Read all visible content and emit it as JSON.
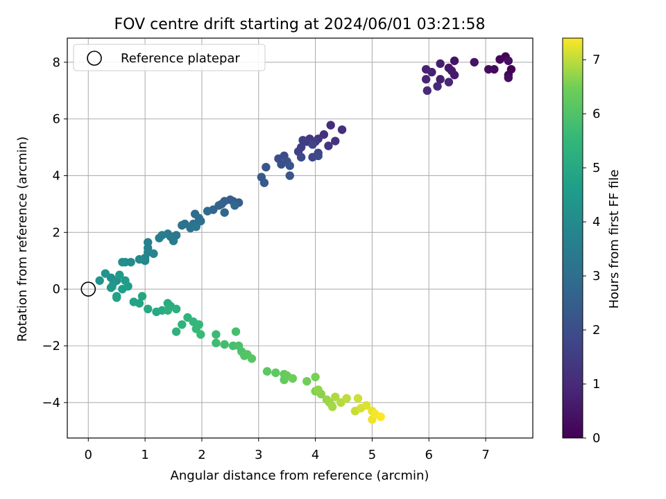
{
  "chart_data": {
    "type": "scatter",
    "title": "FOV centre drift starting at 2024/06/01 03:21:58",
    "xlabel": "Angular distance from reference (arcmin)",
    "ylabel": "Rotation from reference (arcmin)",
    "xlim": [
      -0.37,
      7.83
    ],
    "ylim": [
      -5.25,
      8.85
    ],
    "xticks": [
      0,
      1,
      2,
      3,
      4,
      5,
      6,
      7
    ],
    "yticks": [
      -4,
      -2,
      0,
      2,
      4,
      6,
      8
    ],
    "grid": true,
    "legend": {
      "placement": "top-left",
      "entries": [
        "Reference platepar"
      ]
    },
    "reference_point": {
      "x": 0,
      "y": 0
    },
    "colorbar": {
      "label": "Hours from first FF file",
      "colormap": "viridis",
      "range": [
        0,
        7.4
      ],
      "ticks": [
        0,
        1,
        2,
        3,
        4,
        5,
        6,
        7
      ]
    },
    "series": [
      {
        "points": [
          [
            7.45,
            7.75
          ],
          [
            7.4,
            7.55
          ],
          [
            7.35,
            8.2
          ],
          [
            7.25,
            8.1
          ],
          [
            7.15,
            7.75
          ],
          [
            7.05,
            7.75
          ],
          [
            7.4,
            7.45
          ],
          [
            7.4,
            8.05
          ],
          [
            6.8,
            8.0
          ],
          [
            6.45,
            8.05
          ],
          [
            6.35,
            7.8
          ],
          [
            6.4,
            7.7
          ],
          [
            6.45,
            7.55
          ],
          [
            6.2,
            7.95
          ],
          [
            6.2,
            7.4
          ],
          [
            6.05,
            7.65
          ],
          [
            5.95,
            7.75
          ],
          [
            5.95,
            7.4
          ],
          [
            6.35,
            7.3
          ],
          [
            6.15,
            7.15
          ],
          [
            5.97,
            7.0
          ],
          [
            4.27,
            5.78
          ],
          [
            4.47,
            5.62
          ],
          [
            4.15,
            5.45
          ],
          [
            4.35,
            5.22
          ],
          [
            4.23,
            5.05
          ],
          [
            4.05,
            5.3
          ],
          [
            3.9,
            5.3
          ],
          [
            3.85,
            5.2
          ],
          [
            4.0,
            5.2
          ],
          [
            3.78,
            5.25
          ],
          [
            3.75,
            5.0
          ],
          [
            3.7,
            4.85
          ],
          [
            3.95,
            5.1
          ],
          [
            4.05,
            4.8
          ],
          [
            3.95,
            4.65
          ],
          [
            4.05,
            4.7
          ],
          [
            3.75,
            4.65
          ],
          [
            3.45,
            4.7
          ],
          [
            3.35,
            4.6
          ],
          [
            3.4,
            4.4
          ],
          [
            3.5,
            4.5
          ],
          [
            3.55,
            4.35
          ],
          [
            3.55,
            4.0
          ],
          [
            3.13,
            4.3
          ],
          [
            3.05,
            3.95
          ],
          [
            3.1,
            3.75
          ],
          [
            2.55,
            3.1
          ],
          [
            2.65,
            3.05
          ],
          [
            2.5,
            3.15
          ],
          [
            2.4,
            3.1
          ],
          [
            2.35,
            3.0
          ],
          [
            2.3,
            2.95
          ],
          [
            2.2,
            2.8
          ],
          [
            2.4,
            2.7
          ],
          [
            2.58,
            2.95
          ],
          [
            2.1,
            2.75
          ],
          [
            1.88,
            2.65
          ],
          [
            1.95,
            2.5
          ],
          [
            1.98,
            2.4
          ],
          [
            1.85,
            2.3
          ],
          [
            1.7,
            2.3
          ],
          [
            1.65,
            2.25
          ],
          [
            1.8,
            2.15
          ],
          [
            1.9,
            2.2
          ],
          [
            1.55,
            1.9
          ],
          [
            1.45,
            1.85
          ],
          [
            1.5,
            1.7
          ],
          [
            1.4,
            1.95
          ],
          [
            1.3,
            1.9
          ],
          [
            1.25,
            1.8
          ],
          [
            1.05,
            1.65
          ],
          [
            1.05,
            1.45
          ],
          [
            1.05,
            1.3
          ],
          [
            1.15,
            1.25
          ],
          [
            1.0,
            1.1
          ],
          [
            1.0,
            1.0
          ],
          [
            0.9,
            1.05
          ],
          [
            0.75,
            0.95
          ],
          [
            0.65,
            0.95
          ],
          [
            0.6,
            0.95
          ],
          [
            0.4,
            0.4
          ],
          [
            0.5,
            0.3
          ],
          [
            0.45,
            0.25
          ],
          [
            0.3,
            0.55
          ],
          [
            0.2,
            0.3
          ],
          [
            0.42,
            0.1
          ],
          [
            0.4,
            0.05
          ],
          [
            0.55,
            0.5
          ],
          [
            0.65,
            0.3
          ],
          [
            0.7,
            0.1
          ],
          [
            0.6,
            0.0
          ],
          [
            0.5,
            -0.25
          ],
          [
            0.5,
            -0.3
          ],
          [
            0.8,
            -0.45
          ],
          [
            0.9,
            -0.5
          ],
          [
            0.95,
            -0.25
          ],
          [
            1.05,
            -0.7
          ],
          [
            1.2,
            -0.8
          ],
          [
            1.3,
            -0.75
          ],
          [
            1.4,
            -0.5
          ],
          [
            1.45,
            -0.6
          ],
          [
            1.55,
            -0.7
          ],
          [
            1.4,
            -0.75
          ],
          [
            1.55,
            -1.5
          ],
          [
            1.65,
            -1.25
          ],
          [
            1.75,
            -1.0
          ],
          [
            1.85,
            -1.15
          ],
          [
            1.95,
            -1.25
          ],
          [
            1.9,
            -1.4
          ],
          [
            1.98,
            -1.6
          ],
          [
            2.25,
            -1.6
          ],
          [
            2.25,
            -1.9
          ],
          [
            2.4,
            -1.95
          ],
          [
            2.6,
            -1.5
          ],
          [
            2.55,
            -2.0
          ],
          [
            2.65,
            -2.0
          ],
          [
            2.7,
            -2.2
          ],
          [
            2.75,
            -2.35
          ],
          [
            2.8,
            -2.3
          ],
          [
            2.88,
            -2.45
          ],
          [
            3.15,
            -2.9
          ],
          [
            3.3,
            -2.95
          ],
          [
            3.45,
            -3.0
          ],
          [
            3.45,
            -3.2
          ],
          [
            3.5,
            -3.05
          ],
          [
            3.6,
            -3.15
          ],
          [
            3.85,
            -3.25
          ],
          [
            4.0,
            -3.1
          ],
          [
            4.0,
            -3.6
          ],
          [
            4.1,
            -3.7
          ],
          [
            4.05,
            -3.55
          ],
          [
            4.2,
            -3.9
          ],
          [
            4.25,
            -4.0
          ],
          [
            4.3,
            -4.15
          ],
          [
            4.35,
            -3.8
          ],
          [
            4.45,
            -4.0
          ],
          [
            4.55,
            -3.85
          ],
          [
            4.7,
            -4.3
          ],
          [
            4.75,
            -3.85
          ],
          [
            4.8,
            -4.2
          ],
          [
            4.9,
            -4.1
          ],
          [
            5.0,
            -4.3
          ],
          [
            5.0,
            -4.6
          ],
          [
            5.05,
            -4.4
          ],
          [
            5.15,
            -4.5
          ]
        ]
      }
    ]
  }
}
